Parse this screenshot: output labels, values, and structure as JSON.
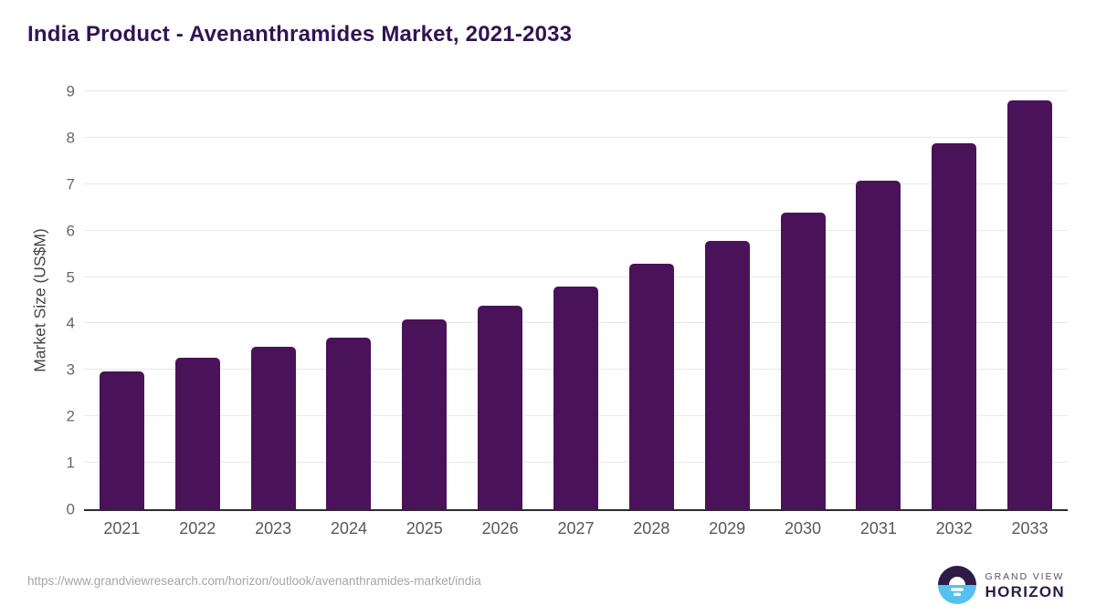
{
  "chart_data": {
    "type": "bar",
    "title": "India Product - Avenanthramides Market, 2021-2033",
    "categories": [
      "2021",
      "2022",
      "2023",
      "2024",
      "2025",
      "2026",
      "2027",
      "2028",
      "2029",
      "2030",
      "2031",
      "2032",
      "2033"
    ],
    "values": [
      2.97,
      3.27,
      3.49,
      3.69,
      4.09,
      4.39,
      4.79,
      5.29,
      5.78,
      6.39,
      7.08,
      7.88,
      8.8
    ],
    "xlabel": "",
    "ylabel": "Market Size (US$M)",
    "ylim": [
      0,
      9
    ],
    "yticks": [
      0,
      1,
      2,
      3,
      4,
      5,
      6,
      7,
      8,
      9
    ],
    "grid": "horizontal",
    "legend": "none",
    "bar_color": "#4a1258"
  },
  "colors": {
    "title": "#321353",
    "bar": "#4a1258",
    "gridline": "#e8e8ea",
    "axis_line": "#2b2b30",
    "tick_label": "#66676b",
    "logo_purple": "#2e1a47",
    "logo_blue": "#56c1ee"
  },
  "footer": {
    "source_url": "https://www.grandviewresearch.com/horizon/outlook/avenanthramides-market/india",
    "logo": {
      "top_text": "GRAND VIEW",
      "bottom_text": "HORIZON"
    }
  }
}
